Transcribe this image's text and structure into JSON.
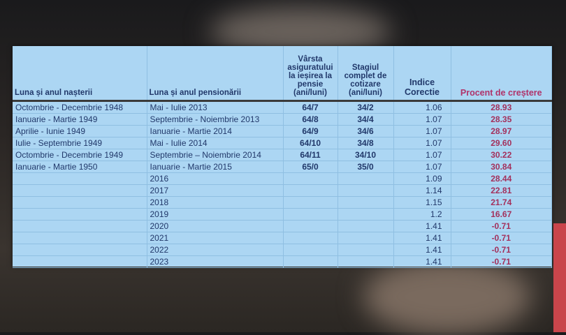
{
  "colors": {
    "table_bg": "#acd6f3",
    "text": "#21386a",
    "accent_red": "#a3305c"
  },
  "table": {
    "headers": [
      "Luna și anul nașterii",
      "Luna și anul pensionării",
      "Vârsta asiguratului la ieșirea la pensie (ani/luni)",
      "Stagiul complet de cotizare (ani/luni)",
      "Indice Corectie",
      "Procent de creștere"
    ],
    "rows": [
      [
        "Octombrie - Decembrie 1948",
        "Mai - Iulie 2013",
        "64/7",
        "34/2",
        "1.06",
        "28.93"
      ],
      [
        "Ianuarie - Martie 1949",
        "Septembrie - Noiembrie 2013",
        "64/8",
        "34/4",
        "1.07",
        "28.35"
      ],
      [
        "Aprilie - Iunie 1949",
        "Ianuarie - Martie 2014",
        "64/9",
        "34/6",
        "1.07",
        "28.97"
      ],
      [
        "Iulie - Septembrie 1949",
        "Mai - Iulie 2014",
        "64/10",
        "34/8",
        "1.07",
        "29.60"
      ],
      [
        "Octombrie - Decembrie 1949",
        "Septembrie – Noiembrie 2014",
        "64/11",
        "34/10",
        "1.07",
        "30.22"
      ],
      [
        "Ianuarie - Martie 1950",
        "Ianuarie - Martie 2015",
        "65/0",
        "35/0",
        "1.07",
        "30.84"
      ],
      [
        "",
        "2016",
        "",
        "",
        "1.09",
        "28.44"
      ],
      [
        "",
        "2017",
        "",
        "",
        "1.14",
        "22.81"
      ],
      [
        "",
        "2018",
        "",
        "",
        "1.15",
        "21.74"
      ],
      [
        "",
        "2019",
        "",
        "",
        "1.2",
        "16.67"
      ],
      [
        "",
        "2020",
        "",
        "",
        "1.41",
        "-0.71"
      ],
      [
        "",
        "2021",
        "",
        "",
        "1.41",
        "-0.71"
      ],
      [
        "",
        "2022",
        "",
        "",
        "1.41",
        "-0.71"
      ],
      [
        "",
        "2023",
        "",
        "",
        "1.41",
        "-0.71"
      ]
    ]
  }
}
